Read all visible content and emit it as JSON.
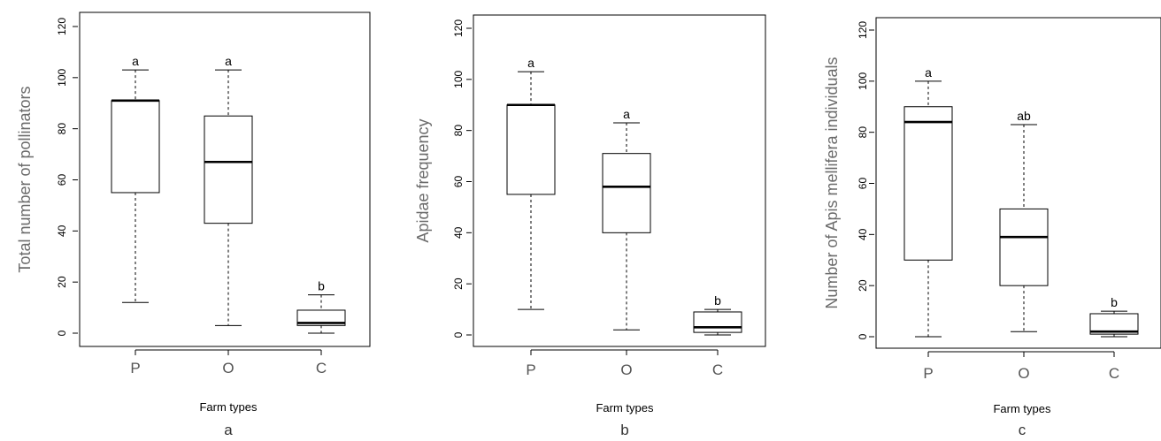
{
  "chart_data": [
    {
      "type": "box",
      "subplot_label": "a",
      "ylabel": "Total number of pollinators",
      "xlabel": "Farm types",
      "categories": [
        "P",
        "O",
        "C"
      ],
      "ylim": [
        0,
        120
      ],
      "yticks": [
        "0",
        "20",
        "40",
        "60",
        "80",
        "100",
        "120"
      ],
      "boxes": [
        {
          "min": 12,
          "q1": 55,
          "median": 91,
          "q3": 91,
          "max": 103,
          "group_label": "a"
        },
        {
          "min": 3,
          "q1": 43,
          "median": 67,
          "q3": 85,
          "max": 103,
          "group_label": "a"
        },
        {
          "min": 0,
          "q1": 3,
          "median": 4,
          "q3": 9,
          "max": 15,
          "group_label": "b"
        }
      ]
    },
    {
      "type": "box",
      "subplot_label": "b",
      "ylabel": "Apidae frequency",
      "xlabel": "Farm types",
      "categories": [
        "P",
        "O",
        "C"
      ],
      "ylim": [
        0,
        120
      ],
      "yticks": [
        "0",
        "20",
        "40",
        "60",
        "80",
        "100",
        "120"
      ],
      "boxes": [
        {
          "min": 10,
          "q1": 55,
          "median": 90,
          "q3": 90,
          "max": 103,
          "group_label": "a"
        },
        {
          "min": 2,
          "q1": 40,
          "median": 58,
          "q3": 71,
          "max": 83,
          "group_label": "a"
        },
        {
          "min": 0,
          "q1": 1,
          "median": 3,
          "q3": 9,
          "max": 10,
          "group_label": "b"
        }
      ]
    },
    {
      "type": "box",
      "subplot_label": "c",
      "ylabel": "Number of Apis mellifera individuals",
      "xlabel": "Farm types",
      "categories": [
        "P",
        "O",
        "C"
      ],
      "ylim": [
        0,
        120
      ],
      "yticks": [
        "0",
        "20",
        "40",
        "60",
        "80",
        "100",
        "120"
      ],
      "boxes": [
        {
          "min": 0,
          "q1": 30,
          "median": 84,
          "q3": 90,
          "max": 100,
          "group_label": "a"
        },
        {
          "min": 2,
          "q1": 20,
          "median": 39,
          "q3": 50,
          "max": 83,
          "group_label": "ab"
        },
        {
          "min": 0,
          "q1": 1,
          "median": 2,
          "q3": 9,
          "max": 10,
          "group_label": "b"
        }
      ]
    }
  ]
}
